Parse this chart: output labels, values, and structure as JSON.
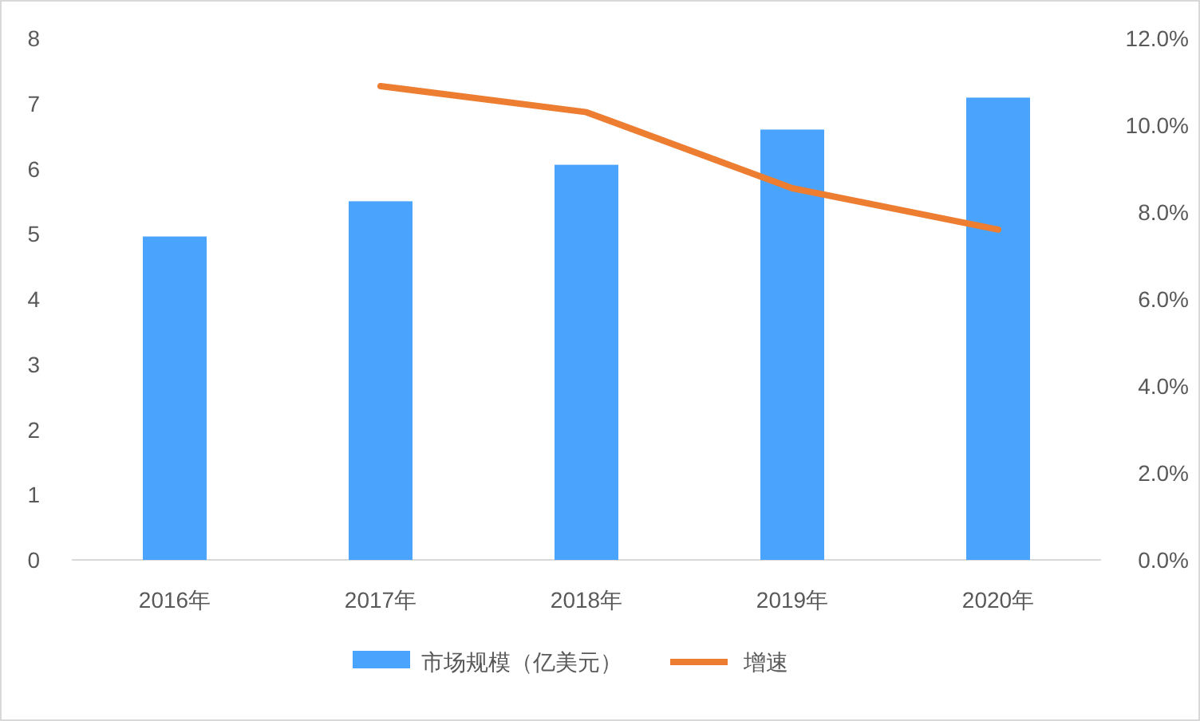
{
  "chart_data": {
    "type": "bar",
    "categories": [
      "2016年",
      "2017年",
      "2018年",
      "2019年",
      "2020年"
    ],
    "series": [
      {
        "name": "市场规模（亿美元）",
        "color": "#4aa3fd",
        "values": [
          4.96,
          5.5,
          6.06,
          6.6,
          7.09
        ]
      },
      {
        "name": "增速",
        "type": "line",
        "axis": "y2",
        "color": "#ed7d31",
        "values": [
          null,
          10.9,
          10.3,
          8.55,
          7.6
        ]
      }
    ],
    "ylim": [
      0,
      8
    ],
    "yticks": [
      0,
      1,
      2,
      3,
      4,
      5,
      6,
      7,
      8
    ],
    "y2lim": [
      0,
      12
    ],
    "y2ticks": [
      {
        "value": 0,
        "label": "0.0%"
      },
      {
        "value": 2,
        "label": "2.0%"
      },
      {
        "value": 4,
        "label": "4.0%"
      },
      {
        "value": 6,
        "label": "6.0%"
      },
      {
        "value": 8,
        "label": "8.0%"
      },
      {
        "value": 10,
        "label": "10.0%"
      },
      {
        "value": 12,
        "label": "12.0%"
      }
    ],
    "grid": false,
    "legend": "bottom"
  }
}
